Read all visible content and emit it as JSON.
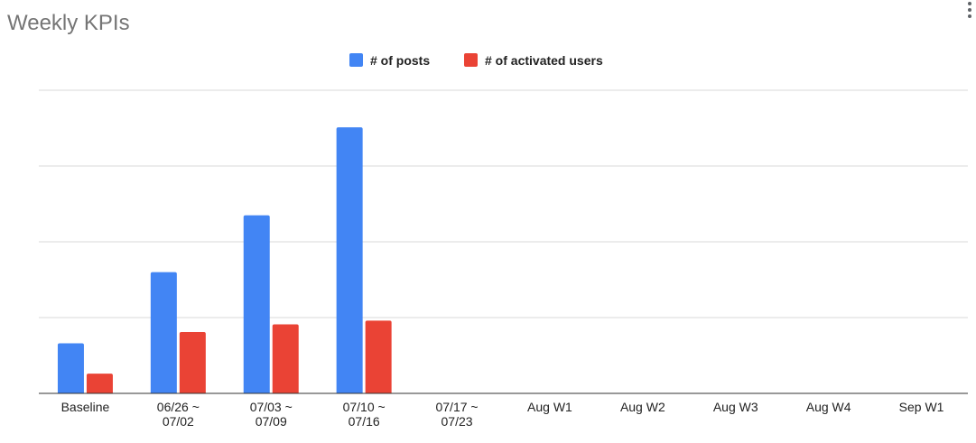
{
  "chart_data": {
    "type": "bar",
    "title": "Weekly KPIs",
    "categories": [
      [
        "Baseline"
      ],
      [
        "06/26 ~",
        "07/02"
      ],
      [
        "07/03 ~",
        "07/09"
      ],
      [
        "07/10 ~",
        "07/16"
      ],
      [
        "07/17 ~",
        "07/23"
      ],
      [
        "Aug W1"
      ],
      [
        "Aug W2"
      ],
      [
        "Aug W3"
      ],
      [
        "Aug W4"
      ],
      [
        "Sep W1"
      ]
    ],
    "series": [
      {
        "name": "# of posts",
        "color": "#4285f4",
        "values": [
          0.66,
          1.6,
          2.35,
          3.51,
          null,
          null,
          null,
          null,
          null,
          null
        ]
      },
      {
        "name": "# of activated users",
        "color": "#ea4335",
        "values": [
          0.26,
          0.81,
          0.91,
          0.96,
          null,
          null,
          null,
          null,
          null,
          null
        ]
      }
    ],
    "ylim": [
      0,
      4
    ],
    "grid": true,
    "legend": "top-center"
  }
}
